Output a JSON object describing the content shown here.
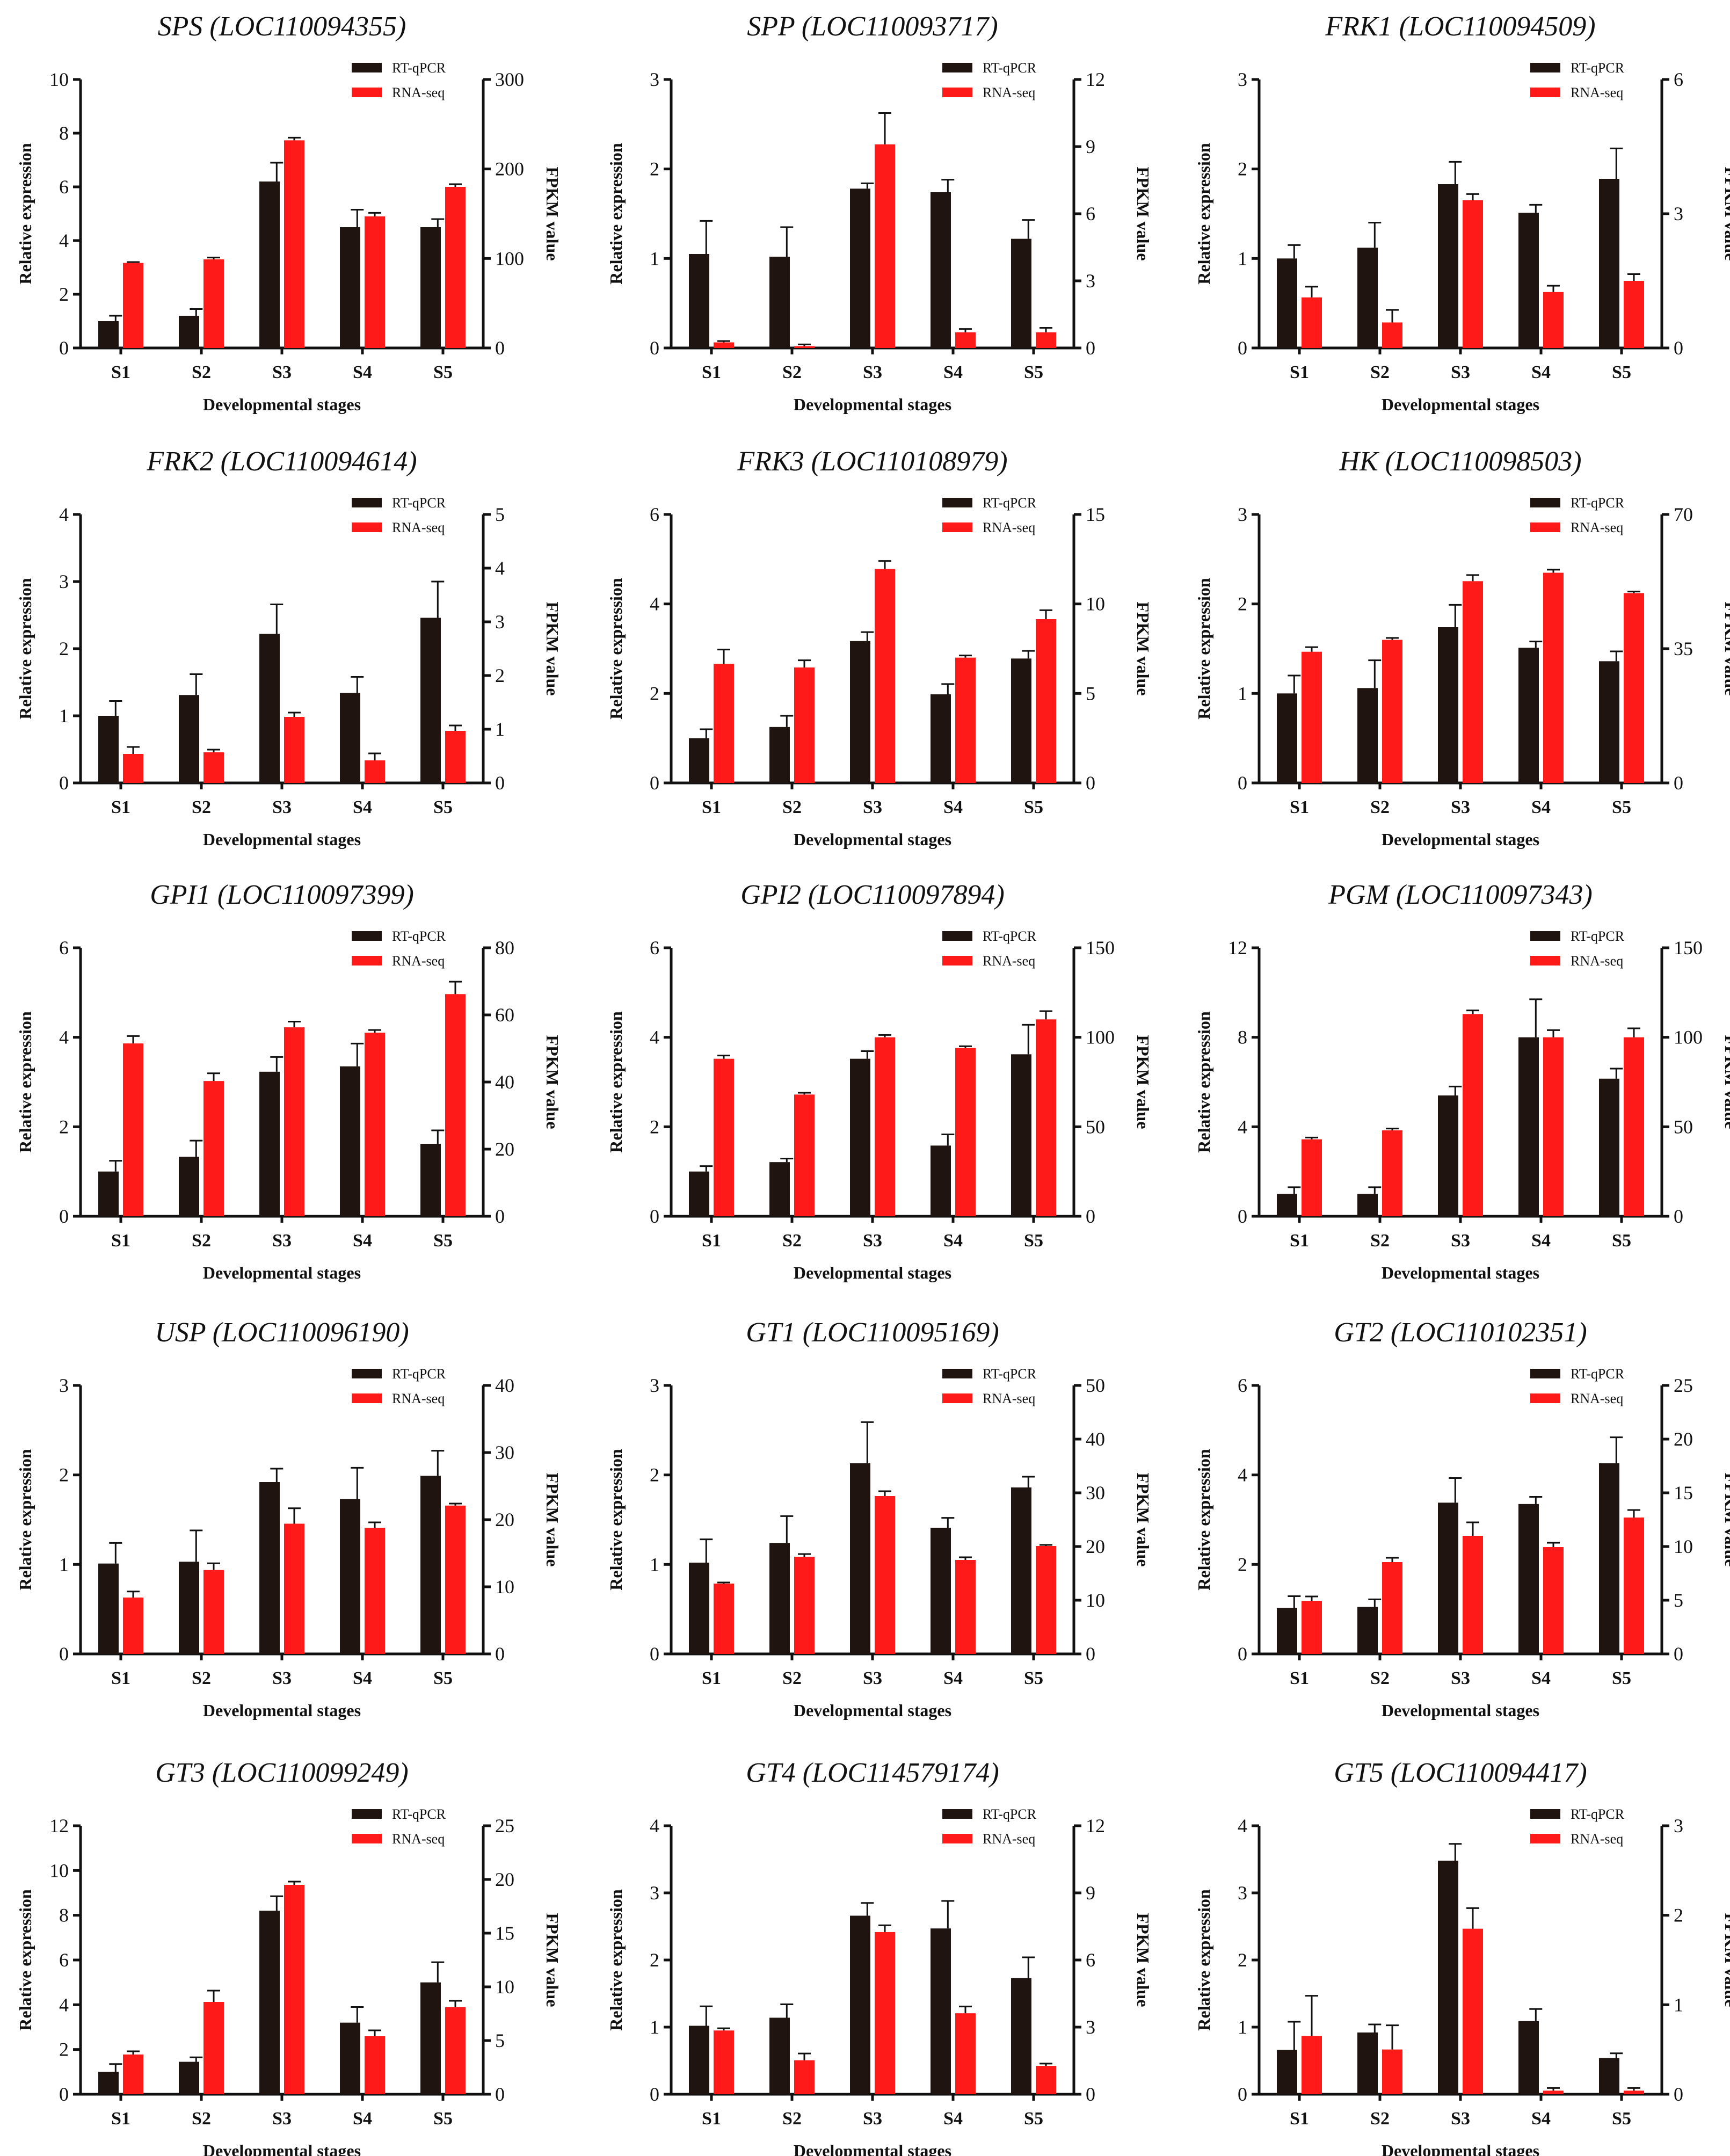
{
  "colors": {
    "rtqpcr": "#1f1410",
    "rnaseq": "#ff1a1a"
  },
  "chart_data": [
    {
      "type": "bar",
      "title": "SPS (LOC110094355)",
      "categories": [
        "S1",
        "S2",
        "S3",
        "S4",
        "S5"
      ],
      "xlabel": "Developmental stages",
      "ylabel": "Relative expression",
      "y2label": "FPKM value",
      "ylim": [
        0,
        10
      ],
      "yticks": [
        0,
        2,
        4,
        6,
        8,
        10
      ],
      "y2lim": [
        0,
        300
      ],
      "y2ticks": [
        0,
        100,
        200,
        300
      ],
      "series": [
        {
          "name": "RT-qPCR",
          "axis": "left",
          "values": [
            1.0,
            1.2,
            6.2,
            4.5,
            4.5
          ],
          "errors": [
            0.2,
            0.25,
            0.7,
            0.65,
            0.3
          ]
        },
        {
          "name": "RNA-seq",
          "axis": "right",
          "values": [
            95,
            99,
            232,
            147,
            180
          ],
          "errors": [
            1,
            2,
            3,
            4,
            3
          ]
        }
      ]
    },
    {
      "type": "bar",
      "title": "SPP (LOC110093717)",
      "categories": [
        "S1",
        "S2",
        "S3",
        "S4",
        "S5"
      ],
      "xlabel": "Developmental stages",
      "ylabel": "Relative expression",
      "y2label": "FPKM value",
      "ylim": [
        0,
        3
      ],
      "yticks": [
        0,
        1,
        2,
        3
      ],
      "y2lim": [
        0,
        12
      ],
      "y2ticks": [
        0,
        3,
        6,
        9,
        12
      ],
      "series": [
        {
          "name": "RT-qPCR",
          "axis": "left",
          "values": [
            1.05,
            1.02,
            1.78,
            1.74,
            1.22
          ],
          "errors": [
            0.37,
            0.33,
            0.06,
            0.14,
            0.21
          ]
        },
        {
          "name": "RNA-seq",
          "axis": "right",
          "values": [
            0.25,
            0.08,
            9.1,
            0.7,
            0.7
          ],
          "errors": [
            0.06,
            0.08,
            1.4,
            0.15,
            0.2
          ]
        }
      ]
    },
    {
      "type": "bar",
      "title": "FRK1 (LOC110094509)",
      "categories": [
        "S1",
        "S2",
        "S3",
        "S4",
        "S5"
      ],
      "xlabel": "Developmental stages",
      "ylabel": "Relative expression",
      "y2label": "FPKM value",
      "ylim": [
        0,
        3
      ],
      "yticks": [
        0,
        1,
        2,
        3
      ],
      "y2lim": [
        0,
        6
      ],
      "y2ticks": [
        0,
        3,
        6
      ],
      "series": [
        {
          "name": "RT-qPCR",
          "axis": "left",
          "values": [
            1.0,
            1.12,
            1.83,
            1.51,
            1.89
          ],
          "errors": [
            0.15,
            0.28,
            0.25,
            0.09,
            0.34
          ]
        },
        {
          "name": "RNA-seq",
          "axis": "right",
          "values": [
            1.13,
            0.57,
            3.3,
            1.25,
            1.5
          ],
          "errors": [
            0.24,
            0.28,
            0.14,
            0.14,
            0.15
          ]
        }
      ]
    },
    {
      "type": "bar",
      "title": "FRK2 (LOC110094614)",
      "categories": [
        "S1",
        "S2",
        "S3",
        "S4",
        "S5"
      ],
      "xlabel": "Developmental stages",
      "ylabel": "Relative expression",
      "y2label": "FPKM value",
      "ylim": [
        0,
        4
      ],
      "yticks": [
        0,
        1,
        2,
        3,
        4
      ],
      "y2lim": [
        0,
        5
      ],
      "y2ticks": [
        0,
        1,
        2,
        3,
        4,
        5
      ],
      "series": [
        {
          "name": "RT-qPCR",
          "axis": "left",
          "values": [
            1.0,
            1.31,
            2.22,
            1.34,
            2.46
          ],
          "errors": [
            0.22,
            0.31,
            0.44,
            0.24,
            0.54
          ]
        },
        {
          "name": "RNA-seq",
          "axis": "right",
          "values": [
            0.54,
            0.57,
            1.23,
            0.42,
            0.97
          ],
          "errors": [
            0.13,
            0.05,
            0.08,
            0.13,
            0.1
          ]
        }
      ]
    },
    {
      "type": "bar",
      "title": "FRK3 (LOC110108979)",
      "categories": [
        "S1",
        "S2",
        "S3",
        "S4",
        "S5"
      ],
      "xlabel": "Developmental stages",
      "ylabel": "Relative expression",
      "y2label": "FPKM value",
      "ylim": [
        0,
        6
      ],
      "yticks": [
        0,
        2,
        4,
        6
      ],
      "y2lim": [
        0,
        15
      ],
      "y2ticks": [
        0,
        5,
        10,
        15
      ],
      "series": [
        {
          "name": "RT-qPCR",
          "axis": "left",
          "values": [
            1.0,
            1.25,
            3.17,
            1.98,
            2.78
          ],
          "errors": [
            0.2,
            0.25,
            0.2,
            0.23,
            0.17
          ]
        },
        {
          "name": "RNA-seq",
          "axis": "right",
          "values": [
            6.65,
            6.45,
            11.95,
            7.0,
            9.15
          ],
          "errors": [
            0.8,
            0.4,
            0.45,
            0.12,
            0.5
          ]
        }
      ]
    },
    {
      "type": "bar",
      "title": "HK (LOC110098503)",
      "categories": [
        "S1",
        "S2",
        "S3",
        "S4",
        "S5"
      ],
      "xlabel": "Developmental stages",
      "ylabel": "Relative expression",
      "y2label": "FPKM value",
      "ylim": [
        0,
        3
      ],
      "yticks": [
        0,
        1,
        2,
        3
      ],
      "y2lim": [
        0,
        70
      ],
      "y2ticks": [
        0,
        35,
        70
      ],
      "series": [
        {
          "name": "RT-qPCR",
          "axis": "left",
          "values": [
            1.0,
            1.06,
            1.74,
            1.51,
            1.36
          ],
          "errors": [
            0.2,
            0.31,
            0.25,
            0.07,
            0.11
          ]
        },
        {
          "name": "RNA-seq",
          "axis": "right",
          "values": [
            34.2,
            37.3,
            52.6,
            54.8,
            49.5
          ],
          "errors": [
            1.2,
            0.5,
            1.6,
            0.8,
            0.4
          ]
        }
      ]
    },
    {
      "type": "bar",
      "title": "GPI1 (LOC110097399)",
      "categories": [
        "S1",
        "S2",
        "S3",
        "S4",
        "S5"
      ],
      "xlabel": "Developmental stages",
      "ylabel": "Relative expression",
      "y2label": "FPKM value",
      "ylim": [
        0,
        6
      ],
      "yticks": [
        0,
        2,
        4,
        6
      ],
      "y2lim": [
        0,
        80
      ],
      "y2ticks": [
        0,
        20,
        40,
        60,
        80
      ],
      "series": [
        {
          "name": "RT-qPCR",
          "axis": "left",
          "values": [
            1.0,
            1.33,
            3.23,
            3.35,
            1.62
          ],
          "errors": [
            0.24,
            0.36,
            0.33,
            0.51,
            0.3
          ]
        },
        {
          "name": "RNA-seq",
          "axis": "right",
          "values": [
            51.5,
            40.3,
            56.3,
            54.7,
            66.2
          ],
          "errors": [
            2.2,
            2.3,
            1.7,
            0.8,
            3.7
          ]
        }
      ]
    },
    {
      "type": "bar",
      "title": "GPI2 (LOC110097894)",
      "categories": [
        "S1",
        "S2",
        "S3",
        "S4",
        "S5"
      ],
      "xlabel": "Developmental stages",
      "ylabel": "Relative expression",
      "y2label": "FPKM value",
      "ylim": [
        0,
        6
      ],
      "yticks": [
        0,
        2,
        4,
        6
      ],
      "y2lim": [
        0,
        150
      ],
      "y2ticks": [
        0,
        50,
        100,
        150
      ],
      "series": [
        {
          "name": "RT-qPCR",
          "axis": "left",
          "values": [
            1.0,
            1.21,
            3.52,
            1.58,
            3.62
          ],
          "errors": [
            0.12,
            0.08,
            0.17,
            0.25,
            0.66
          ]
        },
        {
          "name": "RNA-seq",
          "axis": "right",
          "values": [
            88,
            68,
            100,
            94,
            110
          ],
          "errors": [
            1.8,
            1,
            1.3,
            1,
            4.6
          ]
        }
      ]
    },
    {
      "type": "bar",
      "title": "PGM (LOC110097343)",
      "categories": [
        "S1",
        "S2",
        "S3",
        "S4",
        "S5"
      ],
      "xlabel": "Developmental stages",
      "ylabel": "Relative expression",
      "y2label": "FPKM value",
      "ylim": [
        0,
        12
      ],
      "yticks": [
        0,
        4,
        8,
        12
      ],
      "y2lim": [
        0,
        150
      ],
      "y2ticks": [
        0,
        50,
        100,
        150
      ],
      "series": [
        {
          "name": "RT-qPCR",
          "axis": "left",
          "values": [
            1.0,
            1.0,
            5.4,
            8.0,
            6.15
          ],
          "errors": [
            0.3,
            0.3,
            0.4,
            1.7,
            0.45
          ]
        },
        {
          "name": "RNA-seq",
          "axis": "right",
          "values": [
            43,
            48,
            113,
            100,
            100
          ],
          "errors": [
            1,
            1,
            2,
            4,
            5
          ]
        }
      ]
    },
    {
      "type": "bar",
      "title": "USP (LOC110096190)",
      "categories": [
        "S1",
        "S2",
        "S3",
        "S4",
        "S5"
      ],
      "xlabel": "Developmental stages",
      "ylabel": "Relative expression",
      "y2label": "FPKM value",
      "ylim": [
        0,
        3
      ],
      "yticks": [
        0,
        1,
        2,
        3
      ],
      "y2lim": [
        0,
        40
      ],
      "y2ticks": [
        0,
        10,
        20,
        30,
        40
      ],
      "series": [
        {
          "name": "RT-qPCR",
          "axis": "left",
          "values": [
            1.01,
            1.03,
            1.92,
            1.73,
            1.99
          ],
          "errors": [
            0.23,
            0.35,
            0.15,
            0.35,
            0.28
          ]
        },
        {
          "name": "RNA-seq",
          "axis": "right",
          "values": [
            8.4,
            12.5,
            19.4,
            18.8,
            22.1
          ],
          "errors": [
            0.9,
            1,
            2.3,
            0.8,
            0.3
          ]
        }
      ]
    },
    {
      "type": "bar",
      "title": "GT1 (LOC110095169)",
      "categories": [
        "S1",
        "S2",
        "S3",
        "S4",
        "S5"
      ],
      "xlabel": "Developmental stages",
      "ylabel": "Relative expression",
      "y2label": "FPKM value",
      "ylim": [
        0,
        3
      ],
      "yticks": [
        0,
        1,
        2,
        3
      ],
      "y2lim": [
        0,
        50
      ],
      "y2ticks": [
        0,
        10,
        20,
        30,
        40,
        50
      ],
      "series": [
        {
          "name": "RT-qPCR",
          "axis": "left",
          "values": [
            1.02,
            1.24,
            2.13,
            1.41,
            1.86
          ],
          "errors": [
            0.26,
            0.3,
            0.46,
            0.11,
            0.12
          ]
        },
        {
          "name": "RNA-seq",
          "axis": "right",
          "values": [
            13.1,
            18.1,
            29.4,
            17.5,
            20.1
          ],
          "errors": [
            0.2,
            0.5,
            0.9,
            0.5,
            0.2
          ]
        }
      ]
    },
    {
      "type": "bar",
      "title": "GT2 (LOC110102351)",
      "categories": [
        "S1",
        "S2",
        "S3",
        "S4",
        "S5"
      ],
      "xlabel": "Developmental stages",
      "ylabel": "Relative expression",
      "y2label": "FPKM value",
      "ylim": [
        0,
        6
      ],
      "yticks": [
        0,
        2,
        4,
        6
      ],
      "y2lim": [
        0,
        25
      ],
      "y2ticks": [
        0,
        5,
        10,
        15,
        20,
        25
      ],
      "series": [
        {
          "name": "RT-qPCR",
          "axis": "left",
          "values": [
            1.03,
            1.05,
            3.38,
            3.35,
            4.26
          ],
          "errors": [
            0.26,
            0.17,
            0.55,
            0.16,
            0.58
          ]
        },
        {
          "name": "RNA-seq",
          "axis": "right",
          "values": [
            4.95,
            8.55,
            11.0,
            9.95,
            12.7
          ],
          "errors": [
            0.4,
            0.4,
            1.25,
            0.4,
            0.7
          ]
        }
      ]
    },
    {
      "type": "bar",
      "title": "GT3 (LOC110099249)",
      "categories": [
        "S1",
        "S2",
        "S3",
        "S4",
        "S5"
      ],
      "xlabel": "Developmental stages",
      "ylabel": "Relative expression",
      "y2label": "FPKM value",
      "ylim": [
        0,
        12
      ],
      "yticks": [
        0,
        2,
        4,
        6,
        8,
        10,
        12
      ],
      "y2lim": [
        0,
        25
      ],
      "y2ticks": [
        0,
        5,
        10,
        15,
        20,
        25
      ],
      "series": [
        {
          "name": "RT-qPCR",
          "axis": "left",
          "values": [
            1.0,
            1.45,
            8.2,
            3.2,
            5.0
          ],
          "errors": [
            0.35,
            0.2,
            0.65,
            0.7,
            0.9
          ]
        },
        {
          "name": "RNA-seq",
          "axis": "right",
          "values": [
            3.7,
            8.6,
            19.5,
            5.4,
            8.1
          ],
          "errors": [
            0.3,
            1.05,
            0.3,
            0.55,
            0.6
          ]
        }
      ]
    },
    {
      "type": "bar",
      "title": "GT4 (LOC114579174)",
      "categories": [
        "S1",
        "S2",
        "S3",
        "S4",
        "S5"
      ],
      "xlabel": "Developmental stages",
      "ylabel": "Relative expression",
      "y2label": "FPKM value",
      "ylim": [
        0,
        4
      ],
      "yticks": [
        0,
        1,
        2,
        3,
        4
      ],
      "y2lim": [
        0,
        12
      ],
      "y2ticks": [
        0,
        3,
        6,
        9,
        12
      ],
      "series": [
        {
          "name": "RT-qPCR",
          "axis": "left",
          "values": [
            1.02,
            1.14,
            2.66,
            2.47,
            1.73
          ],
          "errors": [
            0.29,
            0.2,
            0.19,
            0.41,
            0.31
          ]
        },
        {
          "name": "RNA-seq",
          "axis": "right",
          "values": [
            2.85,
            1.52,
            7.25,
            3.62,
            1.27
          ],
          "errors": [
            0.1,
            0.3,
            0.3,
            0.3,
            0.1
          ]
        }
      ]
    },
    {
      "type": "bar",
      "title": "GT5 (LOC110094417)",
      "categories": [
        "S1",
        "S2",
        "S3",
        "S4",
        "S5"
      ],
      "xlabel": "Developmental stages",
      "ylabel": "Relative expression",
      "y2label": "FPKM value",
      "ylim": [
        0,
        4
      ],
      "yticks": [
        0,
        1,
        2,
        3,
        4
      ],
      "y2lim": [
        0,
        3
      ],
      "y2ticks": [
        0,
        1,
        2,
        3
      ],
      "series": [
        {
          "name": "RT-qPCR",
          "axis": "left",
          "values": [
            0.66,
            0.92,
            3.48,
            1.09,
            0.54
          ],
          "errors": [
            0.42,
            0.12,
            0.25,
            0.18,
            0.07
          ]
        },
        {
          "name": "RNA-seq",
          "axis": "right",
          "values": [
            0.65,
            0.5,
            1.85,
            0.04,
            0.04
          ],
          "errors": [
            0.45,
            0.27,
            0.23,
            0.03,
            0.03
          ]
        }
      ]
    }
  ]
}
